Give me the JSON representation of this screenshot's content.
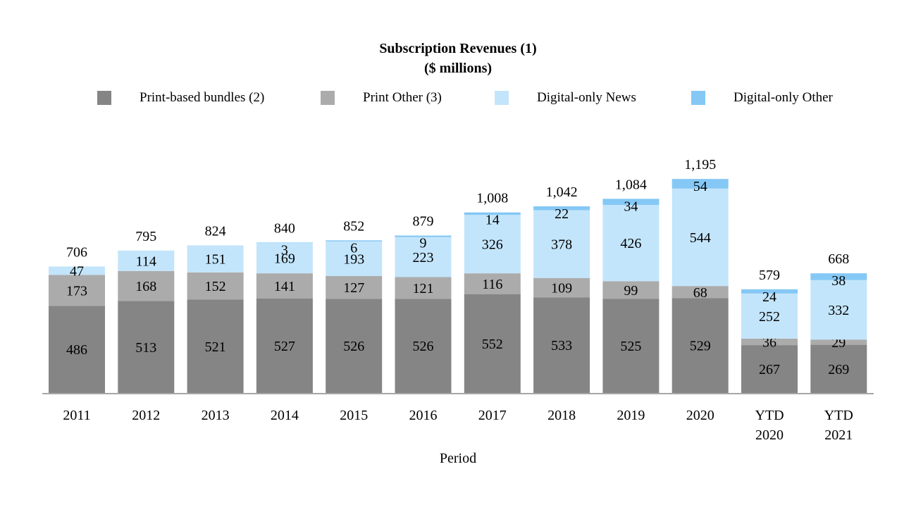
{
  "chart_data": {
    "type": "bar",
    "stacked": true,
    "title": "Subscription Revenues (1)",
    "subtitle": "($ millions)",
    "xlabel": "Period",
    "ylabel": "",
    "legend_position": "top",
    "grid": false,
    "categories": [
      [
        "2011"
      ],
      [
        "2012"
      ],
      [
        "2013"
      ],
      [
        "2014"
      ],
      [
        "2015"
      ],
      [
        "2016"
      ],
      [
        "2017"
      ],
      [
        "2018"
      ],
      [
        "2019"
      ],
      [
        "2020"
      ],
      [
        "YTD",
        "2020"
      ],
      [
        "YTD",
        "2021"
      ]
    ],
    "series": [
      {
        "name": "Print-based bundles (2)",
        "color": "#858585",
        "values": [
          486,
          513,
          521,
          527,
          526,
          526,
          552,
          533,
          525,
          529,
          267,
          269
        ]
      },
      {
        "name": "Print Other (3)",
        "color": "#ababab",
        "values": [
          173,
          168,
          152,
          141,
          127,
          121,
          116,
          109,
          99,
          68,
          36,
          29
        ]
      },
      {
        "name": "Digital-only News",
        "color": "#c3e5fb",
        "values": [
          47,
          114,
          151,
          169,
          193,
          223,
          326,
          378,
          426,
          544,
          252,
          332
        ]
      },
      {
        "name": "Digital-only Other",
        "color": "#85c8f5",
        "values": [
          null,
          null,
          null,
          3,
          6,
          9,
          14,
          22,
          34,
          54,
          24,
          38
        ]
      }
    ],
    "totals": [
      "706",
      "795",
      "824",
      "840",
      "852",
      "879",
      "1,008",
      "1,042",
      "1,084",
      "1,195",
      "579",
      "668"
    ],
    "ylim": [
      0,
      1260
    ]
  }
}
